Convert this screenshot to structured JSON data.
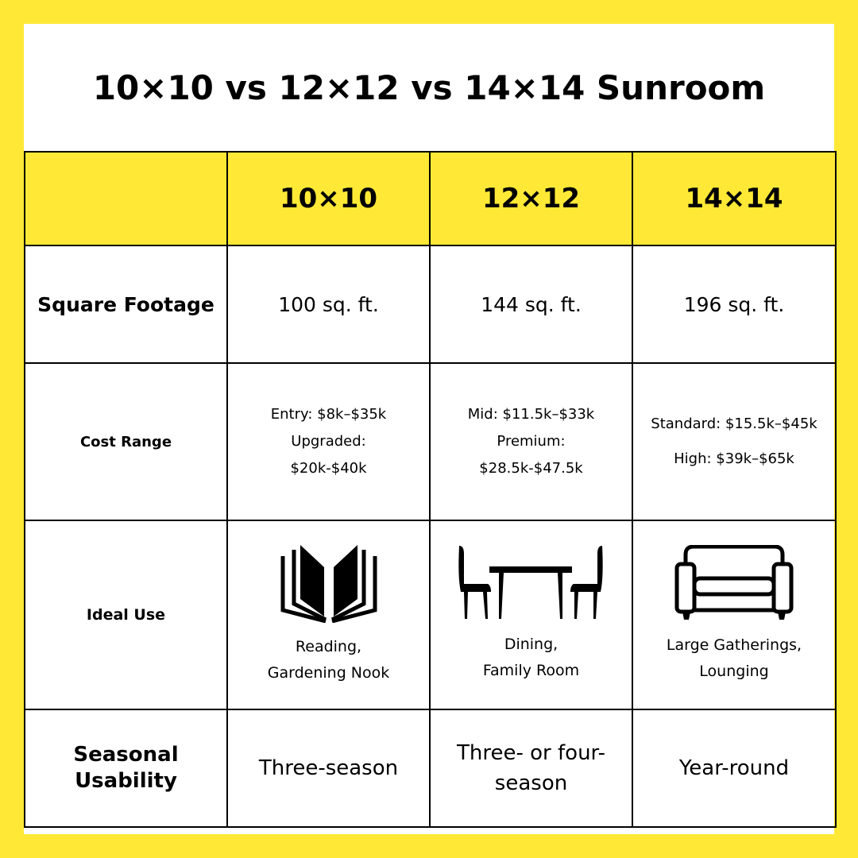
{
  "title": "10×10 vs 12×12 vs 14×14 Sunroom",
  "colors": {
    "accent": "#ffe936",
    "text": "#000000",
    "background": "#ffffff"
  },
  "columns": [
    "",
    "10×10",
    "12×12",
    "14×14"
  ],
  "rows": {
    "square_footage": {
      "label": "Square Footage",
      "values": [
        "100 sq. ft.",
        "144 sq. ft.",
        "196 sq. ft."
      ]
    },
    "cost_range": {
      "label": "Cost Range",
      "values": [
        {
          "line1": "Entry: $8k–$35k",
          "line2": "Upgraded:",
          "line3": "$20k-$40k"
        },
        {
          "line1": "Mid: $11.5k–$33k",
          "line2": "Premium:",
          "line3": "$28.5k-$47.5k"
        },
        {
          "line1": "Standard: $15.5k–$45k",
          "line2": "High: $39k–$65k"
        }
      ]
    },
    "ideal_use": {
      "label": "Ideal Use",
      "values": [
        {
          "icon": "open-book-icon",
          "line1": "Reading,",
          "line2": "Gardening Nook"
        },
        {
          "icon": "dining-table-icon",
          "line1": "Dining,",
          "line2": "Family Room"
        },
        {
          "icon": "sofa-icon",
          "line1": "Large Gatherings,",
          "line2": "Lounging"
        }
      ]
    },
    "seasonal_usability": {
      "label_line1": "Seasonal",
      "label_line2": "Usability",
      "values": [
        {
          "line1": "Three-season"
        },
        {
          "line1": "Three- or four-",
          "line2": "season"
        },
        {
          "line1": "Year-round"
        }
      ]
    }
  }
}
